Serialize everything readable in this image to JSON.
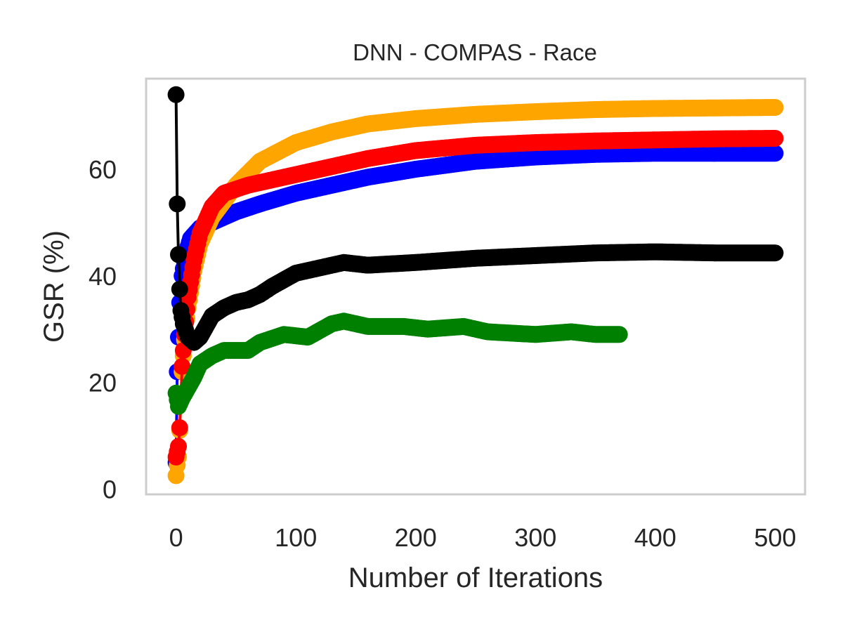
{
  "chart_data": {
    "type": "line",
    "title": "DNN - COMPAS - Race",
    "xlabel": "Number of Iterations",
    "ylabel": "GSR (%)",
    "xlim": [
      -25,
      525
    ],
    "ylim": [
      -1,
      77
    ],
    "grid": false,
    "x_ticks": [
      0,
      100,
      200,
      300,
      400,
      500
    ],
    "y_ticks": [
      0,
      20,
      40,
      60
    ],
    "series": [
      {
        "color": "#0000ff",
        "points": [
          [
            0,
            5
          ],
          [
            1,
            22
          ],
          [
            2,
            28.5
          ],
          [
            3,
            35
          ],
          [
            5,
            40
          ],
          [
            8,
            44
          ],
          [
            12,
            47
          ],
          [
            20,
            49
          ],
          [
            30,
            50
          ],
          [
            40,
            51
          ],
          [
            50,
            52
          ],
          [
            70,
            53.5
          ],
          [
            100,
            55.5
          ],
          [
            130,
            57
          ],
          [
            160,
            58.5
          ],
          [
            200,
            60
          ],
          [
            250,
            61.5
          ],
          [
            300,
            62.3
          ],
          [
            350,
            62.8
          ],
          [
            400,
            63
          ],
          [
            450,
            63
          ],
          [
            500,
            63
          ]
        ]
      },
      {
        "color": "#ffa500",
        "points": [
          [
            0,
            2.5
          ],
          [
            1,
            4.5
          ],
          [
            2,
            6
          ],
          [
            3,
            11
          ],
          [
            4,
            17
          ],
          [
            5,
            22
          ],
          [
            7,
            28
          ],
          [
            10,
            34
          ],
          [
            15,
            41
          ],
          [
            20,
            46
          ],
          [
            30,
            51
          ],
          [
            50,
            57
          ],
          [
            70,
            61.5
          ],
          [
            100,
            65
          ],
          [
            130,
            67
          ],
          [
            160,
            68.5
          ],
          [
            200,
            69.5
          ],
          [
            250,
            70.3
          ],
          [
            300,
            70.8
          ],
          [
            350,
            71.2
          ],
          [
            400,
            71.4
          ],
          [
            450,
            71.5
          ],
          [
            500,
            71.6
          ]
        ]
      },
      {
        "color": "#ff0000",
        "points": [
          [
            0,
            6
          ],
          [
            1,
            7
          ],
          [
            2,
            8
          ],
          [
            3,
            11.5
          ],
          [
            4,
            17
          ],
          [
            5,
            23
          ],
          [
            7,
            29
          ],
          [
            10,
            36
          ],
          [
            15,
            43
          ],
          [
            20,
            48
          ],
          [
            30,
            53
          ],
          [
            40,
            55.5
          ],
          [
            60,
            57
          ],
          [
            80,
            58
          ],
          [
            100,
            59
          ],
          [
            130,
            60.5
          ],
          [
            160,
            62
          ],
          [
            200,
            63.5
          ],
          [
            250,
            64.5
          ],
          [
            300,
            65
          ],
          [
            350,
            65.3
          ],
          [
            400,
            65.5
          ],
          [
            450,
            65.7
          ],
          [
            500,
            65.8
          ]
        ]
      },
      {
        "color": "#008000",
        "points": [
          [
            0,
            18
          ],
          [
            2,
            15.5
          ],
          [
            5,
            17
          ],
          [
            10,
            19
          ],
          [
            15,
            21
          ],
          [
            20,
            23.5
          ],
          [
            30,
            25
          ],
          [
            40,
            26
          ],
          [
            60,
            26
          ],
          [
            70,
            27.5
          ],
          [
            90,
            29
          ],
          [
            110,
            28.5
          ],
          [
            130,
            31
          ],
          [
            140,
            31.5
          ],
          [
            160,
            30.5
          ],
          [
            190,
            30.5
          ],
          [
            210,
            30
          ],
          [
            240,
            30.5
          ],
          [
            260,
            29.5
          ],
          [
            300,
            29
          ],
          [
            330,
            29.5
          ],
          [
            350,
            29
          ],
          [
            370,
            29
          ]
        ]
      },
      {
        "color": "#000000",
        "points": [
          [
            0,
            74
          ],
          [
            1,
            53.5
          ],
          [
            2,
            44
          ],
          [
            3,
            37.5
          ],
          [
            4,
            33.5
          ],
          [
            6,
            31
          ],
          [
            10,
            28.5
          ],
          [
            15,
            27.5
          ],
          [
            20,
            28.5
          ],
          [
            30,
            32.5
          ],
          [
            40,
            34
          ],
          [
            50,
            35
          ],
          [
            60,
            35.5
          ],
          [
            70,
            36.5
          ],
          [
            80,
            38
          ],
          [
            100,
            40.5
          ],
          [
            120,
            41.5
          ],
          [
            140,
            42.5
          ],
          [
            160,
            42
          ],
          [
            200,
            42.5
          ],
          [
            250,
            43.3
          ],
          [
            300,
            43.8
          ],
          [
            350,
            44.3
          ],
          [
            400,
            44.5
          ],
          [
            450,
            44.3
          ],
          [
            500,
            44.3
          ]
        ]
      }
    ]
  }
}
